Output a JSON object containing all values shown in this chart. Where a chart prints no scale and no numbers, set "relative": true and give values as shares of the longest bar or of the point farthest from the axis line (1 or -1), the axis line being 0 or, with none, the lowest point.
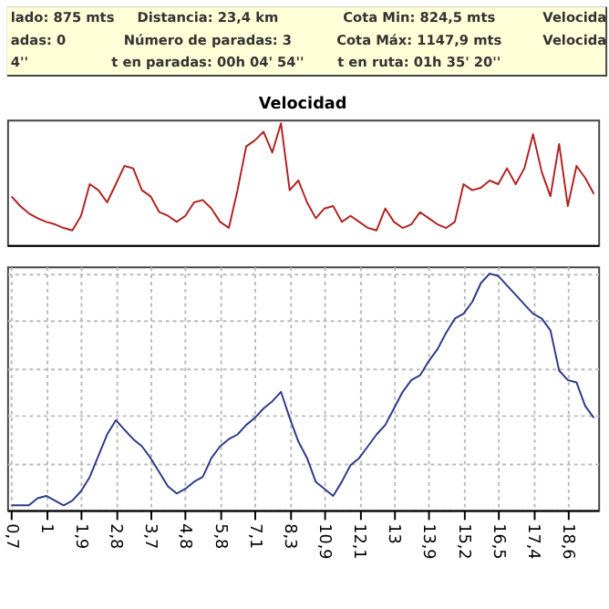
{
  "chart_data": [
    {
      "type": "other",
      "annotations": [
        "lado: 875 mts",
        "Distancia: 23,4 km",
        "Cota Min: 824,5 mts",
        "Velocida",
        "adas: 0",
        "Número de paradas: 3",
        "Cota Máx: 1147,9 mts",
        "Velocida",
        "4''",
        "t en paradas: 00h 04' 54''",
        "t en ruta: 01h 35' 20''"
      ]
    },
    {
      "type": "line",
      "title": "Velocidad",
      "relative": true,
      "tick_labels": false,
      "categories": [
        null,
        null,
        null,
        null,
        null,
        null,
        null,
        null,
        null,
        null,
        null,
        null,
        null,
        null,
        null,
        null,
        null,
        null,
        null,
        null,
        null,
        null,
        null,
        null,
        null,
        null,
        null,
        null,
        null,
        null,
        null,
        null,
        null,
        null,
        null,
        null,
        null,
        null,
        null,
        null,
        null,
        null,
        null,
        null,
        null,
        null,
        null,
        null,
        null,
        null,
        null,
        null,
        null,
        null,
        null,
        null,
        null,
        null,
        null,
        null,
        null,
        null,
        null,
        null,
        null,
        null,
        null,
        null
      ],
      "series": [
        {
          "color": "#b22222",
          "values": [
            0.4,
            0.32,
            0.26,
            0.22,
            0.19,
            0.17,
            0.14,
            0.12,
            0.24,
            0.5,
            0.45,
            0.35,
            0.5,
            0.65,
            0.63,
            0.45,
            0.4,
            0.27,
            0.24,
            0.19,
            0.24,
            0.35,
            0.37,
            0.3,
            0.19,
            0.14,
            0.45,
            0.81,
            0.86,
            0.93,
            0.76,
            1.0,
            0.45,
            0.53,
            0.35,
            0.22,
            0.3,
            0.32,
            0.19,
            0.24,
            0.19,
            0.14,
            0.12,
            0.3,
            0.19,
            0.14,
            0.17,
            0.27,
            0.22,
            0.17,
            0.14,
            0.19,
            0.5,
            0.45,
            0.47,
            0.53,
            0.5,
            0.63,
            0.5,
            0.63,
            0.91,
            0.6,
            0.4,
            0.83,
            0.32,
            0.65,
            0.55,
            0.42
          ]
        }
      ]
    },
    {
      "type": "line",
      "relative": true,
      "tick_labels": "x",
      "grid": true,
      "categories": [
        "0,7",
        null,
        null,
        null,
        "1",
        null,
        null,
        null,
        "1,9",
        null,
        null,
        null,
        "2,8",
        null,
        null,
        null,
        "3,7",
        null,
        null,
        null,
        "4,8",
        null,
        null,
        null,
        "5,8",
        null,
        null,
        null,
        "7,1",
        null,
        null,
        null,
        "8,3",
        null,
        null,
        null,
        "10,9",
        null,
        null,
        null,
        "12,1",
        null,
        null,
        null,
        "13",
        null,
        null,
        null,
        "13,9",
        null,
        null,
        null,
        "15,2",
        null,
        null,
        null,
        "16,5",
        null,
        null,
        null,
        "17,4",
        null,
        null,
        null,
        "18,6",
        null,
        null,
        null
      ],
      "series": [
        {
          "color": "#2e3a87",
          "values": [
            0.02,
            0.02,
            0.02,
            0.05,
            0.06,
            0.04,
            0.02,
            0.04,
            0.08,
            0.14,
            0.23,
            0.32,
            0.38,
            0.34,
            0.3,
            0.27,
            0.22,
            0.16,
            0.1,
            0.07,
            0.09,
            0.12,
            0.14,
            0.22,
            0.27,
            0.3,
            0.32,
            0.36,
            0.39,
            0.43,
            0.46,
            0.5,
            0.39,
            0.29,
            0.22,
            0.12,
            0.09,
            0.06,
            0.12,
            0.19,
            0.22,
            0.27,
            0.32,
            0.36,
            0.43,
            0.5,
            0.55,
            0.57,
            0.63,
            0.68,
            0.75,
            0.81,
            0.83,
            0.88,
            0.96,
            1.0,
            0.99,
            0.95,
            0.91,
            0.87,
            0.83,
            0.81,
            0.76,
            0.59,
            0.55,
            0.54,
            0.44,
            0.39
          ]
        }
      ]
    }
  ]
}
